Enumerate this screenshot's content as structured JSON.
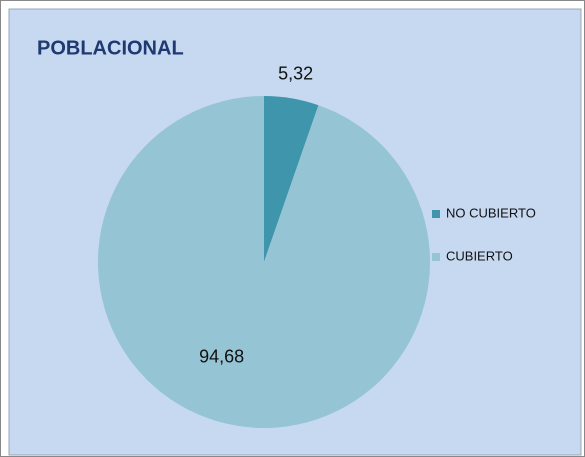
{
  "chart_data": {
    "type": "pie",
    "title": "POBLACIONAL",
    "categories": [
      "NO CUBIERTO",
      "CUBIERTO"
    ],
    "values": [
      5.32,
      94.68
    ],
    "value_labels": [
      "5,32",
      "94,68"
    ],
    "colors": [
      "#3f96ac",
      "#95c4d4"
    ],
    "legend": "right"
  }
}
